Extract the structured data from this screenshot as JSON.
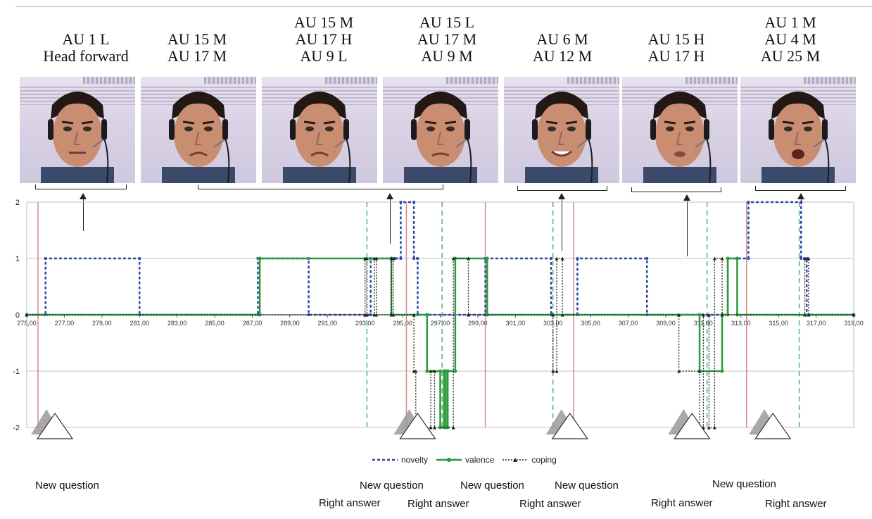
{
  "faces": [
    {
      "au_lines": [
        "AU 1 L",
        "Head forward"
      ],
      "expression": "neutral"
    },
    {
      "au_lines": [
        "AU 15 M",
        "AU 17 M"
      ],
      "expression": "sad"
    },
    {
      "au_lines": [
        "AU 15 M",
        "AU 17 H",
        "AU 9 L"
      ],
      "expression": "sad"
    },
    {
      "au_lines": [
        "AU 15 L",
        "AU 17 M",
        "AU 9 M"
      ],
      "expression": "disgust"
    },
    {
      "au_lines": [
        "AU 6 M",
        "AU 12 M"
      ],
      "expression": "smile"
    },
    {
      "au_lines": [
        "AU 15 H",
        "AU 17 H"
      ],
      "expression": "pout"
    },
    {
      "au_lines": [
        "AU 1 M",
        "AU 4 M",
        "AU 25 M"
      ],
      "expression": "open"
    }
  ],
  "legend": {
    "novelty": "novelty",
    "valence": "valence",
    "coping": "coping"
  },
  "annotations": {
    "new_question": "New question",
    "right_answer": "Right answer"
  },
  "colors": {
    "novelty": "#2b47a8",
    "valence": "#2a9a3a",
    "coping": "#222222",
    "new_question_line": "#d88a80",
    "right_answer_line": "#3aa84a",
    "grid": "#c0c0c0",
    "plot_border": "#a9c6de"
  },
  "chart_data": {
    "type": "line",
    "xlim": [
      275,
      319
    ],
    "ylim": [
      -2,
      2
    ],
    "x_ticks": [
      "275,00",
      "277,00",
      "279,00",
      "281,00",
      "283,00",
      "285,00",
      "287,00",
      "289,00",
      "291,00",
      "293,00",
      "295,00",
      "297,00",
      "299,00",
      "301,00",
      "303,00",
      "305,00",
      "307,00",
      "309,00",
      "311,00",
      "313,00",
      "315,00",
      "317,00",
      "319,00"
    ],
    "y_ticks": [
      "2",
      "1",
      "0",
      "-1",
      "-2"
    ],
    "series": [
      {
        "name": "novelty",
        "points": [
          [
            275.0,
            0
          ],
          [
            276.0,
            0
          ],
          [
            276.0,
            1
          ],
          [
            281.0,
            1
          ],
          [
            281.0,
            0
          ],
          [
            287.3,
            0
          ],
          [
            287.3,
            1
          ],
          [
            290.0,
            1
          ],
          [
            290.0,
            0
          ],
          [
            293.3,
            0
          ],
          [
            293.3,
            1
          ],
          [
            294.6,
            1
          ],
          [
            294.6,
            1
          ],
          [
            294.9,
            1
          ],
          [
            294.9,
            2
          ],
          [
            295.6,
            2
          ],
          [
            295.6,
            1
          ],
          [
            295.8,
            1
          ],
          [
            295.8,
            0
          ],
          [
            299.4,
            0
          ],
          [
            299.4,
            1
          ],
          [
            302.9,
            1
          ],
          [
            302.9,
            0
          ],
          [
            304.3,
            0
          ],
          [
            304.3,
            1
          ],
          [
            308.0,
            1
          ],
          [
            308.0,
            0
          ],
          [
            312.3,
            0
          ],
          [
            312.3,
            1
          ],
          [
            313.4,
            1
          ],
          [
            313.4,
            2
          ],
          [
            316.2,
            2
          ],
          [
            316.2,
            1
          ],
          [
            316.5,
            1
          ],
          [
            316.5,
            0
          ],
          [
            319,
            0
          ]
        ]
      },
      {
        "name": "valence",
        "points": [
          [
            275.0,
            0
          ],
          [
            287.4,
            0
          ],
          [
            287.4,
            1
          ],
          [
            294.4,
            1
          ],
          [
            294.4,
            0
          ],
          [
            296.3,
            0
          ],
          [
            296.3,
            -1
          ],
          [
            297.0,
            -1
          ],
          [
            297.0,
            -2
          ],
          [
            297.2,
            -2
          ],
          [
            297.2,
            -1
          ],
          [
            297.3,
            -1
          ],
          [
            297.3,
            -2
          ],
          [
            297.4,
            -2
          ],
          [
            297.4,
            -1
          ],
          [
            297.8,
            -1
          ],
          [
            297.8,
            1
          ],
          [
            299.5,
            1
          ],
          [
            299.5,
            0
          ],
          [
            310.8,
            0
          ],
          [
            310.8,
            -1
          ],
          [
            312.0,
            -1
          ],
          [
            312.0,
            0
          ],
          [
            312.3,
            0
          ],
          [
            312.3,
            1
          ],
          [
            312.8,
            1
          ],
          [
            312.8,
            0
          ],
          [
            319,
            0
          ]
        ]
      },
      {
        "name": "coping",
        "points": [
          [
            275.0,
            0
          ],
          [
            293.0,
            0
          ],
          [
            293.0,
            1
          ],
          [
            293.1,
            1
          ],
          [
            293.1,
            0
          ],
          [
            293.5,
            0
          ],
          [
            293.5,
            1
          ],
          [
            293.6,
            1
          ],
          [
            293.6,
            0
          ],
          [
            294.4,
            0
          ],
          [
            294.4,
            1
          ],
          [
            294.5,
            1
          ],
          [
            294.5,
            0
          ],
          [
            295.6,
            0
          ],
          [
            295.6,
            -1
          ],
          [
            295.7,
            -1
          ],
          [
            295.7,
            -2
          ],
          [
            296.5,
            -2
          ],
          [
            296.5,
            -1
          ],
          [
            296.7,
            -1
          ],
          [
            296.7,
            -2
          ],
          [
            297.7,
            -2
          ],
          [
            297.7,
            1
          ],
          [
            298.5,
            1
          ],
          [
            298.5,
            0
          ],
          [
            303.0,
            0
          ],
          [
            303.0,
            -1
          ],
          [
            303.2,
            -1
          ],
          [
            303.2,
            1
          ],
          [
            303.5,
            1
          ],
          [
            303.5,
            0
          ],
          [
            309.7,
            0
          ],
          [
            309.7,
            -1
          ],
          [
            310.8,
            -1
          ],
          [
            310.8,
            -2
          ],
          [
            311.0,
            -2
          ],
          [
            311.0,
            0
          ],
          [
            311.3,
            0
          ],
          [
            311.3,
            -2
          ],
          [
            311.6,
            -2
          ],
          [
            311.6,
            1
          ],
          [
            312.0,
            1
          ],
          [
            312.0,
            0
          ],
          [
            316.4,
            0
          ],
          [
            316.4,
            1
          ],
          [
            316.6,
            1
          ],
          [
            316.6,
            0
          ],
          [
            319,
            0
          ]
        ]
      }
    ],
    "new_question_x": [
      275.6,
      295.2,
      299.4,
      304.1,
      313.3
    ],
    "right_answer_x": [
      293.1,
      297.1,
      303.0,
      311.2,
      316.1
    ],
    "new_question_markers_x": [
      276.5,
      295.8,
      303.9,
      310.4,
      314.7
    ]
  }
}
